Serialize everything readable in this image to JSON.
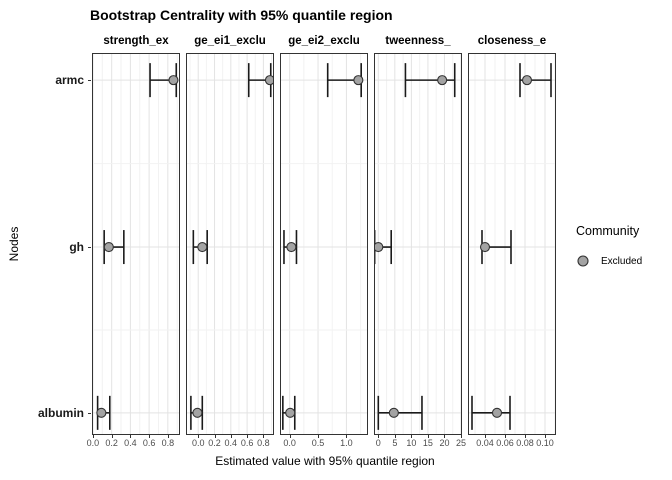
{
  "chart_data": {
    "type": "scatter",
    "subtype": "pointrange-facets",
    "title": "Bootstrap Centrality with 95% quantile region",
    "xlabel": "Estimated value with 95% quantile region",
    "ylabel": "Nodes",
    "nodes": [
      "armc",
      "gh",
      "albumin"
    ],
    "legend": {
      "title": "Community",
      "position": "right",
      "items": [
        {
          "label": "Excluded",
          "fill": "#a3a3a3",
          "stroke": "#333333"
        }
      ]
    },
    "colors": {
      "point_fill": "#a3a3a3",
      "point_stroke": "#333333",
      "errorbar": "#1a1a1a",
      "grid_major": "#e3e3e3",
      "grid_minor": "#f2f2f2",
      "panel_border": "#333333",
      "panel_bg": "#ffffff",
      "tick_text": "#4d4d4d"
    },
    "facets": [
      {
        "label": "strength_ex",
        "xlim": [
          -0.01,
          0.93
        ],
        "major_ticks": [
          0,
          0.2,
          0.4,
          0.6,
          0.8
        ],
        "tick_labels": [
          "0.0",
          "0.2",
          "0.4",
          "0.6",
          "0.8"
        ],
        "minor_ticks": [
          0.1,
          0.3,
          0.5,
          0.7,
          0.9
        ],
        "estimates": [
          {
            "node": "armc",
            "est": 0.86,
            "lower": 0.61,
            "upper": 0.89
          },
          {
            "node": "gh",
            "est": 0.17,
            "lower": 0.12,
            "upper": 0.33
          },
          {
            "node": "albumin",
            "est": 0.09,
            "lower": 0.05,
            "upper": 0.18
          }
        ]
      },
      {
        "label": "ge_ei1_exclu",
        "xlim": [
          -0.15,
          0.93
        ],
        "major_ticks": [
          0,
          0.2,
          0.4,
          0.6,
          0.8
        ],
        "tick_labels": [
          "0.0",
          "0.2",
          "0.4",
          "0.6",
          "0.8"
        ],
        "minor_ticks": [
          -0.1,
          0.1,
          0.3,
          0.5,
          0.7,
          0.9
        ],
        "estimates": [
          {
            "node": "armc",
            "est": 0.88,
            "lower": 0.62,
            "upper": 0.89
          },
          {
            "node": "gh",
            "est": 0.05,
            "lower": -0.06,
            "upper": 0.11
          },
          {
            "node": "albumin",
            "est": -0.01,
            "lower": -0.09,
            "upper": 0.05
          }
        ]
      },
      {
        "label": "ge_ei2_exclu",
        "xlim": [
          -0.17,
          1.38
        ],
        "major_ticks": [
          0,
          0.5,
          1.0
        ],
        "tick_labels": [
          "0.0",
          "0.5",
          "1.0"
        ],
        "minor_ticks": [
          0.25,
          0.75,
          1.25
        ],
        "estimates": [
          {
            "node": "armc",
            "est": 1.21,
            "lower": 0.67,
            "upper": 1.26
          },
          {
            "node": "gh",
            "est": 0.03,
            "lower": -0.1,
            "upper": 0.12
          },
          {
            "node": "albumin",
            "est": 0.01,
            "lower": -0.12,
            "upper": 0.09
          }
        ]
      },
      {
        "label": "tweenness_",
        "xlim": [
          -1.3,
          25.3
        ],
        "major_ticks": [
          0,
          5,
          10,
          15,
          20,
          25
        ],
        "tick_labels": [
          "0",
          "5",
          "10",
          "15",
          "20",
          "25"
        ],
        "minor_ticks": [
          2.5,
          7.5,
          12.5,
          17.5,
          22.5
        ],
        "estimates": [
          {
            "node": "armc",
            "est": 19.3,
            "lower": 8.2,
            "upper": 23.1
          },
          {
            "node": "gh",
            "est": 0,
            "lower": -1.1,
            "upper": 3.9
          },
          {
            "node": "albumin",
            "est": 4.7,
            "lower": 0,
            "upper": 13.2
          }
        ]
      },
      {
        "label": "closeness_e",
        "xlim": [
          0.023,
          0.111
        ],
        "major_ticks": [
          0.04,
          0.06,
          0.08,
          0.1
        ],
        "tick_labels": [
          "0.04",
          "0.06",
          "0.08",
          "0.10"
        ],
        "minor_ticks": [
          0.03,
          0.05,
          0.07,
          0.09,
          0.11
        ],
        "estimates": [
          {
            "node": "armc",
            "est": 0.082,
            "lower": 0.075,
            "upper": 0.106
          },
          {
            "node": "gh",
            "est": 0.04,
            "lower": 0.037,
            "upper": 0.066
          },
          {
            "node": "albumin",
            "est": 0.052,
            "lower": 0.027,
            "upper": 0.065
          }
        ]
      }
    ]
  }
}
